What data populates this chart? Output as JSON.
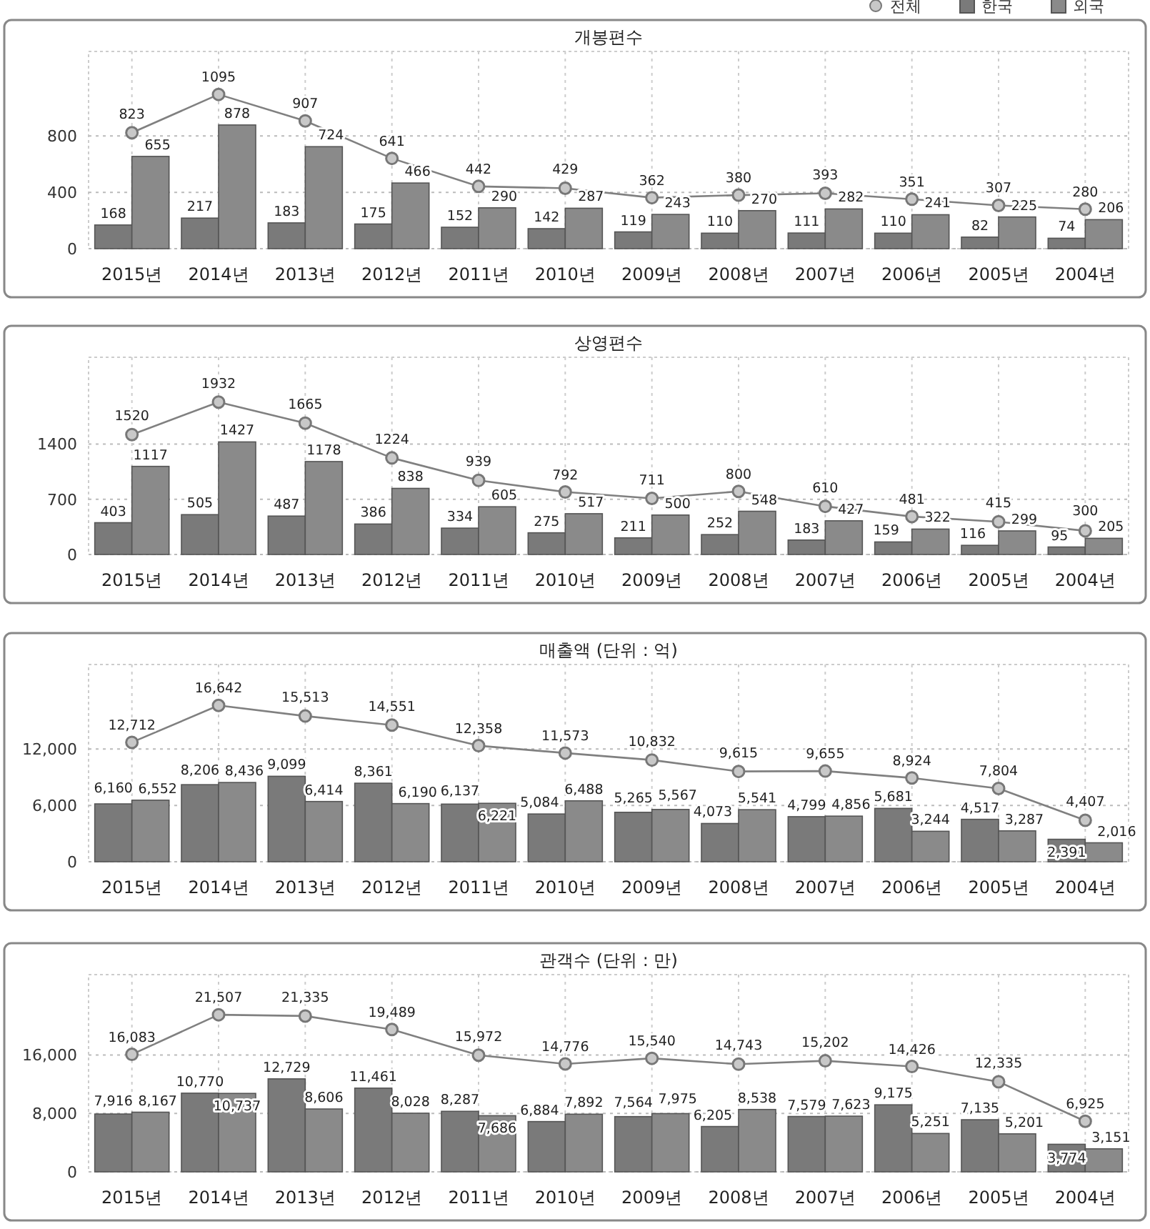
{
  "chart_data": [
    {
      "type": "bar",
      "title": "개봉편수",
      "categories": [
        "2015년",
        "2014년",
        "2013년",
        "2012년",
        "2011년",
        "2010년",
        "2009년",
        "2008년",
        "2007년",
        "2006년",
        "2005년",
        "2004년"
      ],
      "series": [
        {
          "name": "한국",
          "type": "bar",
          "color": "#7a7a7a",
          "values": [
            168,
            217,
            183,
            175,
            152,
            142,
            119,
            110,
            111,
            110,
            82,
            74
          ]
        },
        {
          "name": "외국",
          "type": "bar",
          "color": "#8a8a8a",
          "values": [
            655,
            878,
            724,
            466,
            290,
            287,
            243,
            270,
            282,
            241,
            225,
            206
          ]
        },
        {
          "name": "전체",
          "type": "line",
          "color": "#808080",
          "marker": "circle",
          "values": [
            823,
            1095,
            907,
            641,
            442,
            429,
            362,
            380,
            393,
            351,
            307,
            280
          ]
        }
      ],
      "ylim": [
        0,
        1400
      ],
      "yticks": [
        0,
        400,
        800
      ],
      "grid": true,
      "legend": "top right",
      "data_labels": true
    },
    {
      "type": "bar",
      "title": "상영편수",
      "categories": [
        "2015년",
        "2014년",
        "2013년",
        "2012년",
        "2011년",
        "2010년",
        "2009년",
        "2008년",
        "2007년",
        "2006년",
        "2005년",
        "2004년"
      ],
      "series": [
        {
          "type": "bar",
          "color": "#7a7a7a",
          "values": [
            403,
            505,
            487,
            386,
            334,
            275,
            211,
            252,
            183,
            159,
            116,
            95
          ]
        },
        {
          "type": "bar",
          "color": "#8a8a8a",
          "values": [
            1117,
            1427,
            1178,
            838,
            605,
            517,
            500,
            548,
            427,
            322,
            299,
            205
          ]
        },
        {
          "type": "line",
          "color": "#808080",
          "marker": "circle",
          "values": [
            1520,
            1932,
            1665,
            1224,
            939,
            792,
            711,
            800,
            610,
            481,
            415,
            300
          ]
        }
      ],
      "ylim": [
        0,
        2500
      ],
      "yticks": [
        0,
        700,
        1400
      ],
      "grid": true,
      "data_labels": true
    },
    {
      "type": "bar",
      "title": "매출액 (단위 : 억)",
      "categories": [
        "2015년",
        "2014년",
        "2013년",
        "2012년",
        "2011년",
        "2010년",
        "2009년",
        "2008년",
        "2007년",
        "2006년",
        "2005년",
        "2004년"
      ],
      "series": [
        {
          "type": "bar",
          "color": "#7a7a7a",
          "values": [
            6160,
            8206,
            9099,
            8361,
            6137,
            5084,
            5265,
            4073,
            4799,
            5681,
            4517,
            2391
          ],
          "value_labels": [
            "6,160",
            "8,206",
            "9,099",
            "8,361",
            "6,137",
            "5,084",
            "5,265",
            "4,073",
            "4,799",
            "5,681",
            "4,517",
            "2,391"
          ]
        },
        {
          "type": "bar",
          "color": "#8a8a8a",
          "values": [
            6552,
            8436,
            6414,
            6190,
            6221,
            6488,
            5567,
            5541,
            4856,
            3244,
            3287,
            2016
          ],
          "value_labels": [
            "6,552",
            "8,436",
            "6,414",
            "6,190",
            "6,221",
            "6,488",
            "5,567",
            "5,541",
            "4,856",
            "3,244",
            "3,287",
            "2,016"
          ]
        },
        {
          "type": "line",
          "color": "#808080",
          "marker": "circle",
          "values": [
            12712,
            16642,
            15513,
            14551,
            12358,
            11573,
            10832,
            9615,
            9655,
            8924,
            7804,
            4407
          ],
          "value_labels": [
            "12,712",
            "16,642",
            "15,513",
            "14,551",
            "12,358",
            "11,573",
            "10,832",
            "9,615",
            "9,655",
            "8,924",
            "7,804",
            "4,407"
          ]
        }
      ],
      "ylim": [
        0,
        21000
      ],
      "yticks": [
        0,
        {
          "value": 6000,
          "label": "6,000"
        },
        {
          "value": 12000,
          "label": "12,000"
        }
      ],
      "grid": true
    },
    {
      "type": "bar",
      "title": "관객수 (단위 : 만)",
      "categories": [
        "2015년",
        "2014년",
        "2013년",
        "2012년",
        "2011년",
        "2010년",
        "2009년",
        "2008년",
        "2007년",
        "2006년",
        "2005년",
        "2004년"
      ],
      "series": [
        {
          "type": "bar",
          "color": "#7a7a7a",
          "values": [
            7916,
            10770,
            12729,
            11461,
            8287,
            6884,
            7564,
            6205,
            7579,
            9175,
            7135,
            3774
          ],
          "value_labels": [
            "7,916",
            "10,770",
            "12,729",
            "11,461",
            "8,287",
            "6,884",
            "7,564",
            "6,205",
            "7,579",
            "9,175",
            "7,135",
            "3,774"
          ]
        },
        {
          "type": "bar",
          "color": "#8a8a8a",
          "values": [
            8167,
            10737,
            8606,
            8028,
            7686,
            7892,
            7975,
            8538,
            7623,
            5251,
            5201,
            3151
          ],
          "value_labels": [
            "8,167",
            "10,737",
            "8,606",
            "8,028",
            "7,686",
            "7,892",
            "7,975",
            "8,538",
            "7,623",
            "5,251",
            "5,201",
            "3,151"
          ]
        },
        {
          "type": "line",
          "color": "#808080",
          "marker": "circle",
          "values": [
            16083,
            21507,
            21335,
            19489,
            15972,
            14776,
            15540,
            14743,
            15202,
            14426,
            12335,
            6925
          ],
          "value_labels": [
            "16,083",
            "21,507",
            "21,335",
            "19,489",
            "15,972",
            "14,776",
            "15,540",
            "14,743",
            "15,202",
            "14,426",
            "12,335",
            "6,925"
          ]
        }
      ],
      "ylim": [
        0,
        27000
      ],
      "yticks": [
        0,
        {
          "value": 8000,
          "label": "8,000"
        },
        {
          "value": 16000,
          "label": "16,000"
        }
      ],
      "grid": true
    }
  ]
}
